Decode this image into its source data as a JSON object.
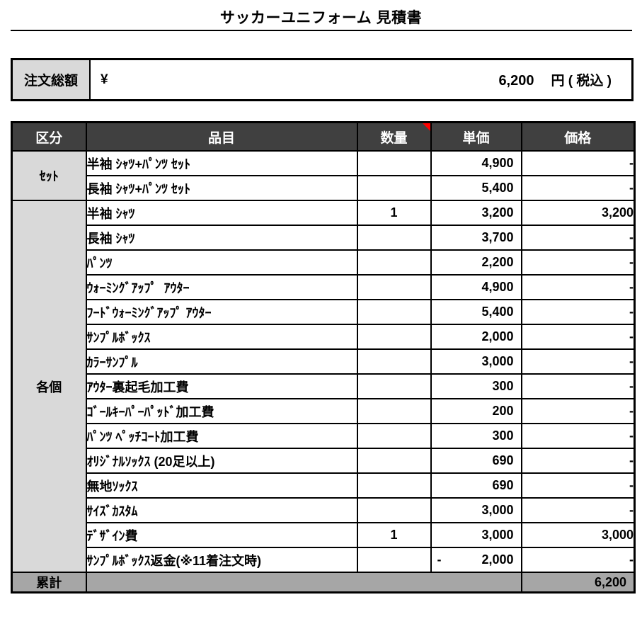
{
  "title": "サッカーユニフォーム 見積書",
  "order_total": {
    "label": "注文総額",
    "currency_symbol": "¥",
    "amount": "6,200",
    "unit_suffix": "円 ( 税込 )"
  },
  "table": {
    "headers": {
      "category": "区分",
      "item": "品目",
      "quantity": "数量",
      "unit_price": "単価",
      "price": "価格"
    },
    "comment_marker": "red-triangle-on-quantity-header",
    "groups": [
      {
        "label": "ｾｯﾄ",
        "start": 0,
        "rowspan": 2
      },
      {
        "label": "各個",
        "start": 2,
        "rowspan": 15
      }
    ],
    "rows": [
      {
        "item": "半袖 ｼｬﾂ+ﾊﾟﾝﾂ ｾｯﾄ",
        "qty": "",
        "unit": "4,900",
        "price": "-"
      },
      {
        "item": "長袖 ｼｬﾂ+ﾊﾟﾝﾂ ｾｯﾄ",
        "qty": "",
        "unit": "5,400",
        "price": "-"
      },
      {
        "item": "半袖 ｼｬﾂ",
        "qty": "1",
        "unit": "3,200",
        "price": "3,200"
      },
      {
        "item": "長袖 ｼｬﾂ",
        "qty": "",
        "unit": "3,700",
        "price": "-"
      },
      {
        "item": "ﾊﾟﾝﾂ",
        "qty": "",
        "unit": "2,200",
        "price": "-"
      },
      {
        "item": "ｳｫｰﾐﾝｸﾞｱｯﾌﾟ  ｱｳﾀｰ",
        "qty": "",
        "unit": "4,900",
        "price": "-"
      },
      {
        "item": "ﾌｰﾄﾞｳｫｰﾐﾝｸﾞｱｯﾌﾟ ｱｳﾀｰ",
        "qty": "",
        "unit": "5,400",
        "price": "-"
      },
      {
        "item": "ｻﾝﾌﾟﾙﾎﾞｯｸｽ",
        "qty": "",
        "unit": "2,000",
        "price": "-"
      },
      {
        "item": "ｶﾗｰｻﾝﾌﾟﾙ",
        "qty": "",
        "unit": "3,000",
        "price": "-"
      },
      {
        "item": "ｱｳﾀｰ裏起毛加工費",
        "qty": "",
        "unit": "300",
        "price": "-"
      },
      {
        "item": "ｺﾞｰﾙｷｰﾊﾟｰﾊﾟｯﾄﾞ加工費",
        "qty": "",
        "unit": "200",
        "price": "-"
      },
      {
        "item": "ﾊﾟﾝﾂ ﾍﾟｯﾁｺｰﾄ加工費",
        "qty": "",
        "unit": "300",
        "price": "-"
      },
      {
        "item": "ｵﾘｼﾞﾅﾙｿｯｸｽ (20足以上)",
        "qty": "",
        "unit": "690",
        "price": "-"
      },
      {
        "item": "無地ｿｯｸｽ",
        "qty": "",
        "unit": "690",
        "price": "-"
      },
      {
        "item": "ｻｲｽﾞｶｽﾀﾑ",
        "qty": "",
        "unit": "3,000",
        "price": "-"
      },
      {
        "item": "ﾃﾞｻﾞｲﾝ費",
        "qty": "1",
        "unit": "3,000",
        "price": "3,000"
      },
      {
        "item": "ｻﾝﾌﾟﾙﾎﾞｯｸｽ返金(※11着注文時)",
        "qty": "",
        "unit_minus": "-",
        "unit": "2,000",
        "price": "-"
      }
    ],
    "total_row": {
      "label": "累計",
      "price": "6,200"
    }
  },
  "colors": {
    "header_bg": "#404040",
    "header_text": "#ffffff",
    "category_bg": "#d9d9d9",
    "total_row_bg": "#a6a6a6",
    "border": "#000000",
    "comment_marker": "#ff0000"
  }
}
